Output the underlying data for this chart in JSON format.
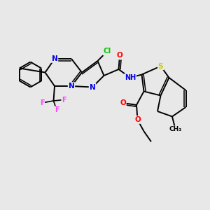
{
  "bg_color": "#e8e8e8",
  "colors": {
    "N": "#0000ee",
    "O": "#ff0000",
    "S": "#cccc00",
    "F": "#ff44ff",
    "Cl": "#00cc00",
    "C": "#000000",
    "H": "#777777"
  }
}
